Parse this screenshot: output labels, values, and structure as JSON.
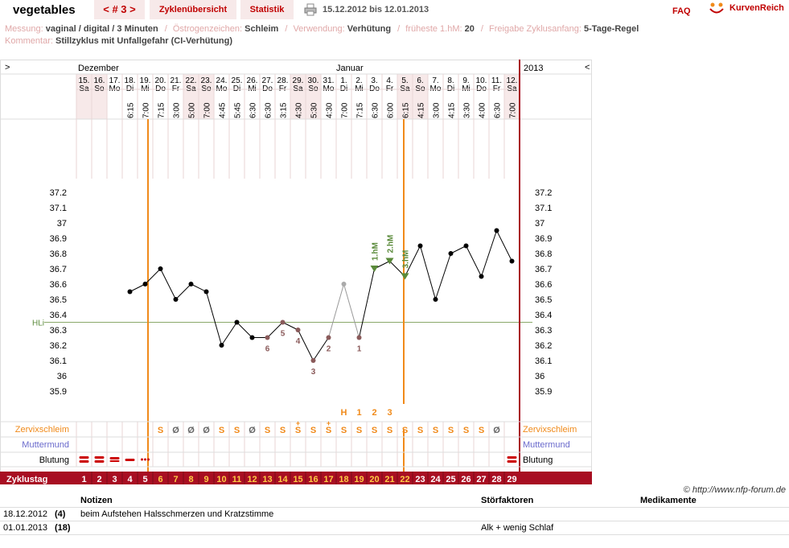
{
  "header": {
    "username": "vegetables",
    "cycle_nav": "< # 3 >",
    "tabs": [
      "Zyklenübersicht",
      "Statistik"
    ],
    "date_range": "15.12.2012 bis 12.01.2013",
    "faq": "FAQ",
    "logo_text": "KurvenReich"
  },
  "info": {
    "row1": [
      {
        "label": "Messung:",
        "value": "vaginal / digital / 3 Minuten"
      },
      {
        "label": "Östrogenzeichen:",
        "value": "Schleim"
      },
      {
        "label": "Verwendung:",
        "value": "Verhütung"
      },
      {
        "label": "früheste 1.hM:",
        "value": "20"
      },
      {
        "label": "Freigabe Zyklusanfang:",
        "value": "5-Tage-Regel"
      }
    ],
    "row2": [
      {
        "label": "Kommentar:",
        "value": "Stillzyklus mit Unfallgefahr (CI-Verhütung)"
      }
    ]
  },
  "chart_data": {
    "type": "line",
    "months": [
      "Dezember",
      "Januar"
    ],
    "year": "2013",
    "nav_prev": ">",
    "nav_next": "<",
    "days": [
      {
        "date": "15.",
        "wd": "Sa",
        "time": "",
        "temp": null,
        "cycle": 1,
        "mucus": "",
        "blood": "heavy",
        "weekend": true
      },
      {
        "date": "16.",
        "wd": "So",
        "time": "",
        "temp": null,
        "cycle": 2,
        "mucus": "",
        "blood": "heavy",
        "weekend": true
      },
      {
        "date": "17.",
        "wd": "Mo",
        "time": "",
        "temp": null,
        "cycle": 3,
        "mucus": "",
        "blood": "medium",
        "weekend": false
      },
      {
        "date": "18.",
        "wd": "Di",
        "time": "6:15",
        "temp": 36.55,
        "cycle": 4,
        "mucus": "",
        "blood": "light",
        "weekend": false
      },
      {
        "date": "19.",
        "wd": "Mi",
        "time": "7:00",
        "temp": 36.6,
        "cycle": 5,
        "mucus": "",
        "blood": "spotting",
        "weekend": false
      },
      {
        "date": "20.",
        "wd": "Do",
        "time": "7:15",
        "temp": 36.7,
        "cycle": 6,
        "mucus": "S",
        "blood": "",
        "weekend": false
      },
      {
        "date": "21.",
        "wd": "Fr",
        "time": "3:00",
        "temp": 36.5,
        "cycle": 7,
        "mucus": "Ø",
        "blood": "",
        "weekend": false
      },
      {
        "date": "22.",
        "wd": "Sa",
        "time": "5:00",
        "temp": 36.6,
        "cycle": 8,
        "mucus": "Ø",
        "blood": "",
        "weekend": true
      },
      {
        "date": "23.",
        "wd": "So",
        "time": "7:00",
        "temp": 36.55,
        "cycle": 9,
        "mucus": "Ø",
        "blood": "",
        "weekend": true
      },
      {
        "date": "24.",
        "wd": "Mo",
        "time": "4:45",
        "temp": 36.2,
        "cycle": 10,
        "mucus": "S",
        "blood": "",
        "weekend": false
      },
      {
        "date": "25.",
        "wd": "Di",
        "time": "5:45",
        "temp": 36.35,
        "cycle": 11,
        "mucus": "S",
        "blood": "",
        "weekend": false
      },
      {
        "date": "26.",
        "wd": "Mi",
        "time": "6:30",
        "temp": 36.25,
        "cycle": 12,
        "mucus": "Ø",
        "blood": "",
        "weekend": false
      },
      {
        "date": "27.",
        "wd": "Do",
        "time": "6:30",
        "temp": 36.25,
        "cycle": 13,
        "mucus": "S",
        "blood": "",
        "weekend": false
      },
      {
        "date": "28.",
        "wd": "Fr",
        "time": "3:15",
        "temp": 36.35,
        "cycle": 14,
        "mucus": "S",
        "blood": "",
        "weekend": false
      },
      {
        "date": "29.",
        "wd": "Sa",
        "time": "4:30",
        "temp": 36.3,
        "cycle": 15,
        "mucus": "S+",
        "blood": "",
        "weekend": true
      },
      {
        "date": "30.",
        "wd": "So",
        "time": "5:30",
        "temp": 36.1,
        "cycle": 16,
        "mucus": "S",
        "blood": "",
        "weekend": true
      },
      {
        "date": "31.",
        "wd": "Mo",
        "time": "4:30",
        "temp": 36.25,
        "cycle": 17,
        "mucus": "S+",
        "blood": "",
        "weekend": false
      },
      {
        "date": "1.",
        "wd": "Di",
        "time": "7:00",
        "temp": 36.6,
        "cycle": 18,
        "mucus": "S",
        "blood": "",
        "weekend": false
      },
      {
        "date": "2.",
        "wd": "Mi",
        "time": "7:15",
        "temp": 36.25,
        "cycle": 19,
        "mucus": "S",
        "blood": "",
        "weekend": false
      },
      {
        "date": "3.",
        "wd": "Do",
        "time": "6:30",
        "temp": 36.7,
        "cycle": 20,
        "mucus": "S",
        "blood": "",
        "weekend": false
      },
      {
        "date": "4.",
        "wd": "Fr",
        "time": "6:00",
        "temp": 36.75,
        "cycle": 21,
        "mucus": "S",
        "blood": "",
        "weekend": false
      },
      {
        "date": "5.",
        "wd": "Sa",
        "time": "6:15",
        "temp": 36.65,
        "cycle": 22,
        "mucus": "S",
        "blood": "",
        "weekend": true
      },
      {
        "date": "6.",
        "wd": "So",
        "time": "4:15",
        "temp": 36.85,
        "cycle": 23,
        "mucus": "S",
        "blood": "",
        "weekend": true
      },
      {
        "date": "7.",
        "wd": "Mo",
        "time": "3:00",
        "temp": 36.5,
        "cycle": 24,
        "mucus": "S",
        "blood": "",
        "weekend": false
      },
      {
        "date": "8.",
        "wd": "Di",
        "time": "4:15",
        "temp": 36.8,
        "cycle": 25,
        "mucus": "S",
        "blood": "",
        "weekend": false
      },
      {
        "date": "9.",
        "wd": "Mi",
        "time": "3:30",
        "temp": 36.85,
        "cycle": 26,
        "mucus": "S",
        "blood": "",
        "weekend": false
      },
      {
        "date": "10.",
        "wd": "Do",
        "time": "4:00",
        "temp": 36.65,
        "cycle": 27,
        "mucus": "S",
        "blood": "",
        "weekend": false
      },
      {
        "date": "11.",
        "wd": "Fr",
        "time": "6:30",
        "temp": 36.95,
        "cycle": 28,
        "mucus": "Ø",
        "blood": "",
        "weekend": false
      },
      {
        "date": "12.",
        "wd": "Sa",
        "time": "7:00",
        "temp": 36.75,
        "cycle": 29,
        "mucus": "",
        "blood": "heavy",
        "weekend": true
      }
    ],
    "y_ticks": [
      "37.2",
      "37.1",
      "37",
      "36.9",
      "36.8",
      "36.7",
      "36.6",
      "36.5",
      "36.4",
      "36.3",
      "36.2",
      "36.1",
      "36",
      "35.9"
    ],
    "ylim": [
      35.9,
      37.2
    ],
    "hli_label": "HLi",
    "hli_value": 36.35,
    "low_labels": [
      {
        "day_index": 12,
        "label": "6"
      },
      {
        "day_index": 13,
        "label": "5"
      },
      {
        "day_index": 14,
        "label": "4"
      },
      {
        "day_index": 15,
        "label": "3"
      },
      {
        "day_index": 16,
        "label": "2"
      },
      {
        "day_index": 18,
        "label": "1"
      }
    ],
    "high_labels": [
      {
        "day_index": 19,
        "label": "1.hM"
      },
      {
        "day_index": 20,
        "label": "2.hM"
      },
      {
        "day_index": 21,
        "label": "3.hM"
      }
    ],
    "peak_markers": [
      {
        "day_index": 17,
        "label": "H"
      },
      {
        "day_index": 18,
        "label": "1"
      },
      {
        "day_index": 19,
        "label": "2"
      },
      {
        "day_index": 20,
        "label": "3"
      }
    ],
    "row_labels": {
      "mucus": "Zervixschleim",
      "cervix": "Muttermund",
      "blood": "Blutung",
      "cycle_day": "Zyklustag",
      "disturbances": "Störfaktoren",
      "medication": "Medikamente",
      "notes": "Notizen"
    },
    "disturbance_day_index": 17,
    "note_day_index": 3,
    "colors": {
      "accent": "#a80e22",
      "orange": "#f08a1a",
      "grid": "#e8d6d6",
      "weekend": "#f7e9e9",
      "hli": "#8aa86a",
      "green": "#5a8a3a",
      "low_label": "#8a5a5a",
      "cervix": "#6a6acc",
      "blood": "#cc0000",
      "cycle_orange": "#ffcc44"
    }
  },
  "notes_table": {
    "headers": [
      "",
      "",
      "Notizen",
      "Störfaktoren",
      "Medikamente"
    ],
    "rows": [
      {
        "date": "18.12.2012",
        "day": "(4)",
        "note": "beim Aufstehen Halsschmerzen und Kratzstimme",
        "disturbance": "",
        "medication": ""
      },
      {
        "date": "01.01.2013",
        "day": "(18)",
        "note": "",
        "disturbance": "Alk + wenig Schlaf",
        "medication": ""
      }
    ]
  },
  "copyright": "© http://www.nfp-forum.de"
}
